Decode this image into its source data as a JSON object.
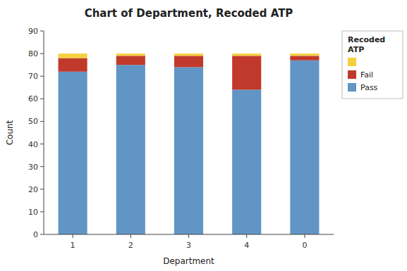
{
  "chart_data": {
    "type": "bar",
    "stacked": true,
    "title": "Chart of Department, Recoded ATP",
    "xlabel": "Department",
    "ylabel": "Count",
    "categories": [
      "1",
      "2",
      "3",
      "4",
      "0"
    ],
    "series": [
      {
        "name": "Pass",
        "color": "#6195C5",
        "values": [
          72,
          75,
          74,
          64,
          77
        ]
      },
      {
        "name": "Fail",
        "color": "#C0392B",
        "values": [
          6,
          4,
          5,
          15,
          2
        ]
      },
      {
        "color": "#F4D03F",
        "values": [
          2,
          1,
          1,
          1,
          1
        ]
      }
    ],
    "legend_title": "Recoded\nATP",
    "legend": "upper right",
    "ylim": [
      0,
      90
    ],
    "yticks": [
      0,
      10,
      20,
      30,
      40,
      50,
      60,
      70,
      80,
      90
    ],
    "grid": false
  }
}
